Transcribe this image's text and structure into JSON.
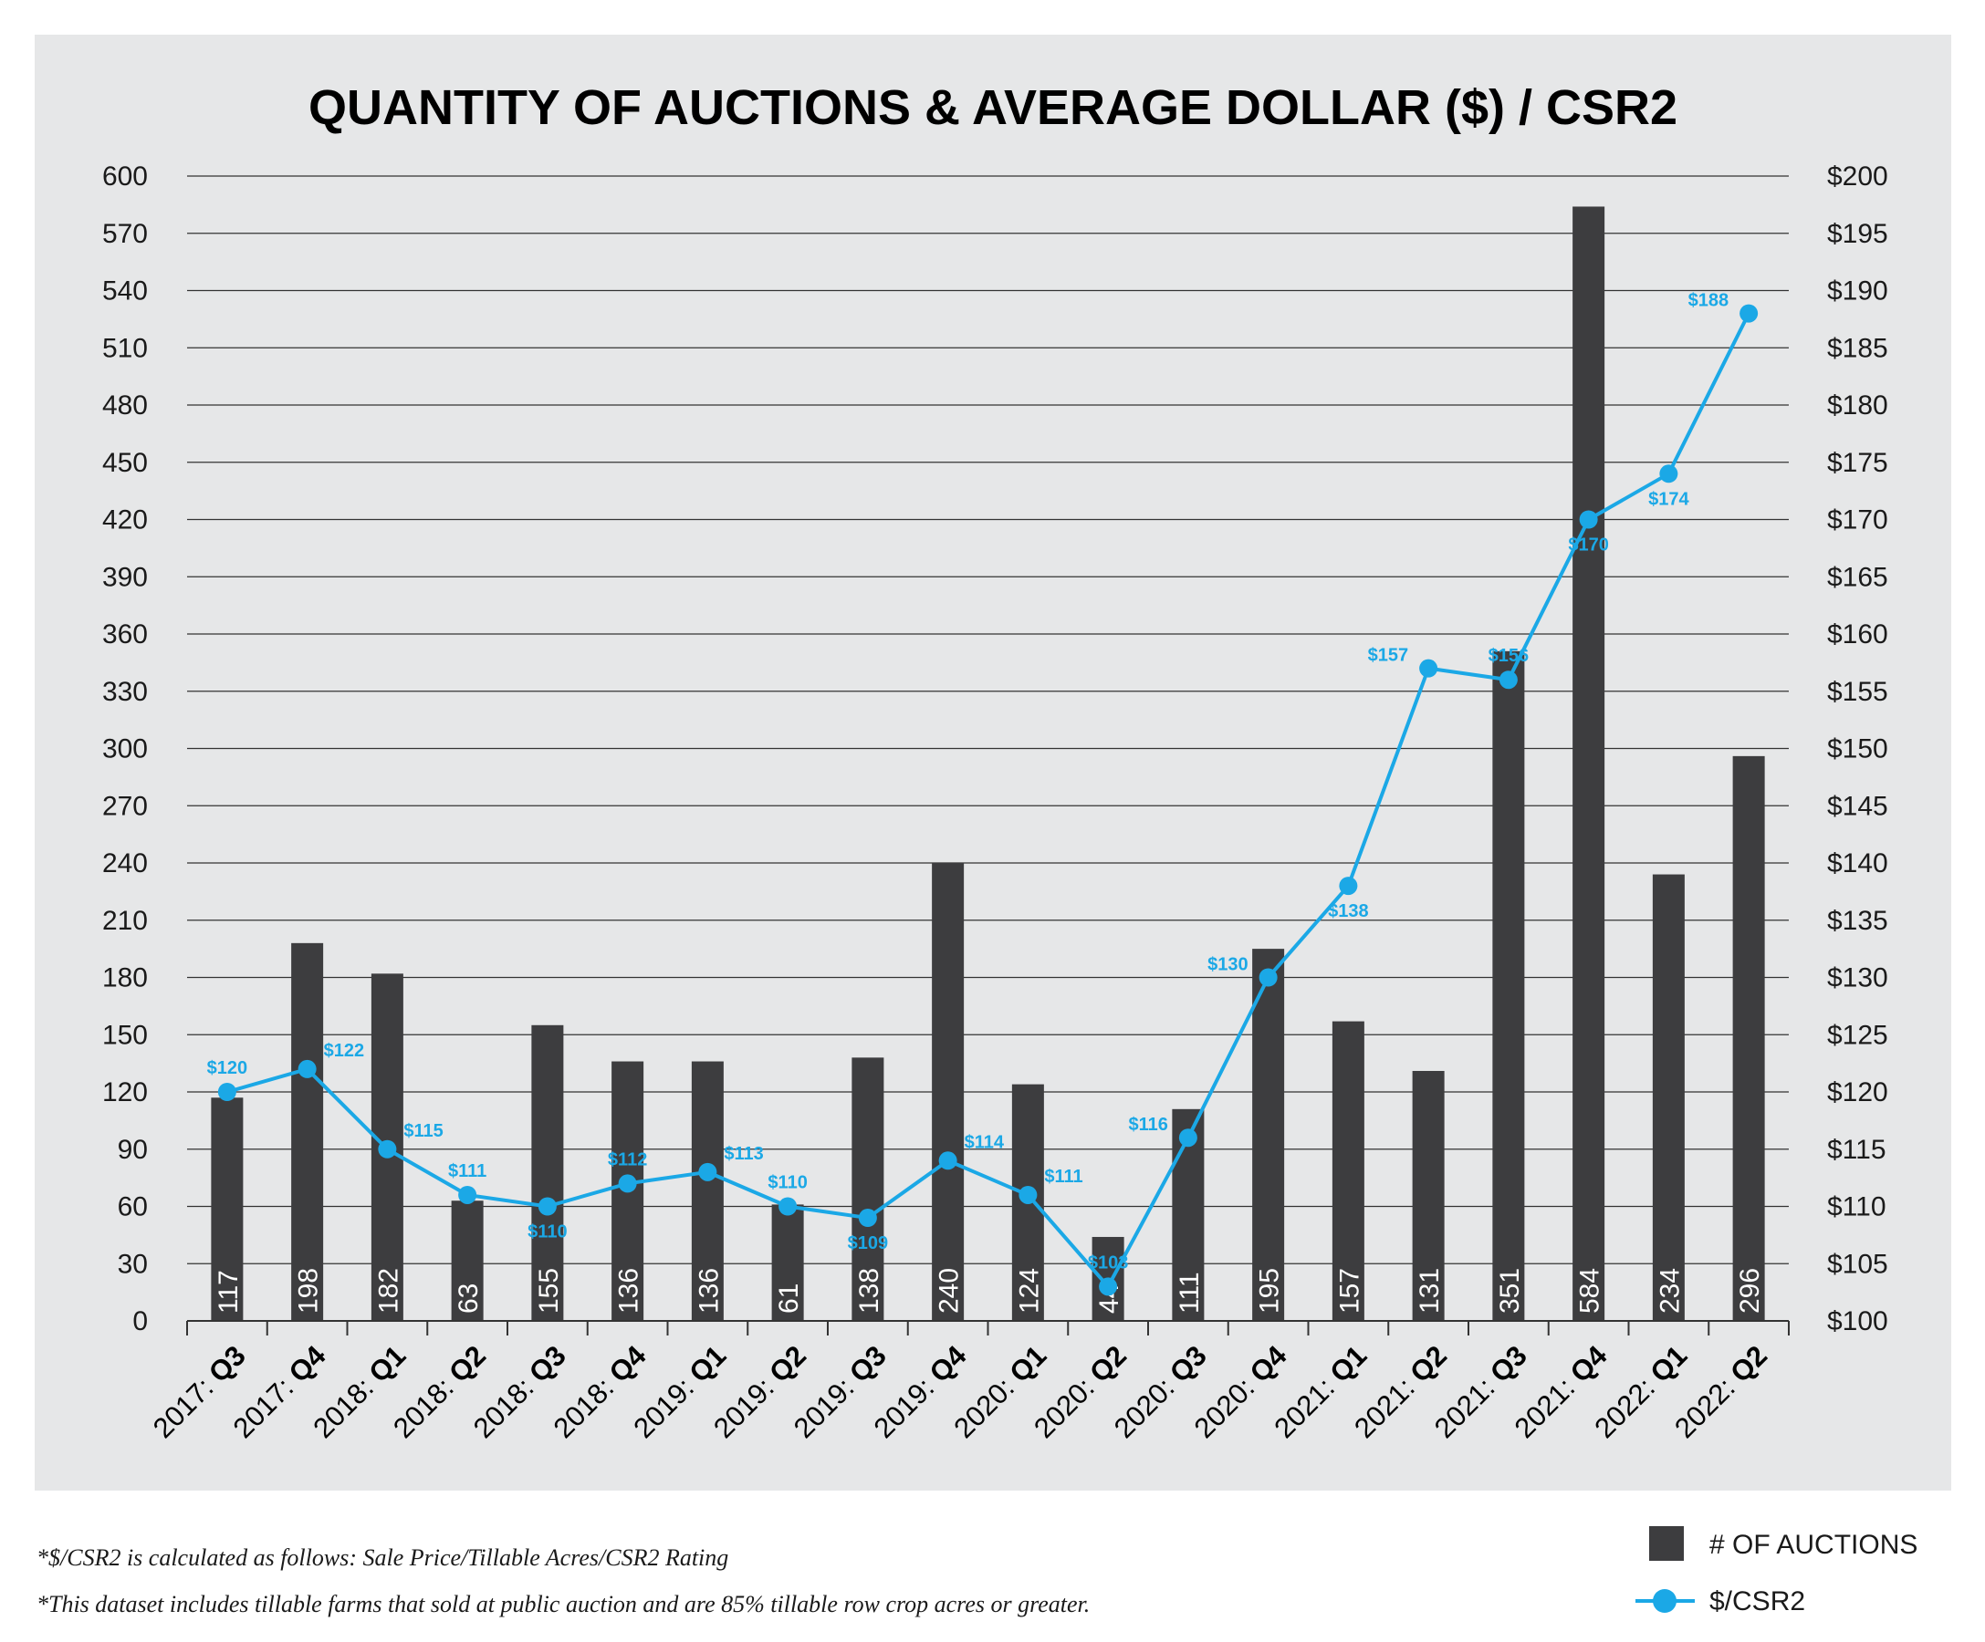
{
  "colors": {
    "bar": "#3d3d3f",
    "line": "#1ba8e6",
    "panel": "#e6e7e8",
    "grid": "#333333"
  },
  "chart_data": {
    "type": "bar+line",
    "title": "QUANTITY OF AUCTIONS & AVERAGE DOLLAR ($) / CSR2",
    "grid": true,
    "legend_position": "bottom-right",
    "categories": [
      {
        "year": "2017: ",
        "q": "Q3"
      },
      {
        "year": "2017: ",
        "q": "Q4"
      },
      {
        "year": "2018: ",
        "q": "Q1"
      },
      {
        "year": "2018: ",
        "q": "Q2"
      },
      {
        "year": "2018: ",
        "q": "Q3"
      },
      {
        "year": "2018: ",
        "q": "Q4"
      },
      {
        "year": "2019: ",
        "q": "Q1"
      },
      {
        "year": "2019: ",
        "q": "Q2"
      },
      {
        "year": "2019: ",
        "q": "Q3"
      },
      {
        "year": "2019: ",
        "q": "Q4"
      },
      {
        "year": "2020: ",
        "q": "Q1"
      },
      {
        "year": "2020: ",
        "q": "Q2"
      },
      {
        "year": "2020: ",
        "q": "Q3"
      },
      {
        "year": "2020: ",
        "q": "Q4"
      },
      {
        "year": "2021: ",
        "q": "Q1"
      },
      {
        "year": "2021: ",
        "q": "Q2"
      },
      {
        "year": "2021: ",
        "q": "Q3"
      },
      {
        "year": "2021: ",
        "q": "Q4"
      },
      {
        "year": "2022: ",
        "q": "Q1"
      },
      {
        "year": "2022: ",
        "q": "Q2"
      }
    ],
    "y_left": {
      "ylim": [
        0,
        600
      ],
      "ticks": [
        "0",
        "30",
        "60",
        "90",
        "120",
        "150",
        "180",
        "210",
        "240",
        "270",
        "300",
        "330",
        "360",
        "390",
        "420",
        "450",
        "480",
        "510",
        "540",
        "570",
        "600"
      ]
    },
    "y_right": {
      "ylim": [
        100,
        200
      ],
      "ticks": [
        "$100",
        "$105",
        "$110",
        "$115",
        "$120",
        "$125",
        "$130",
        "$135",
        "$140",
        "$145",
        "$150",
        "$155",
        "$160",
        "$165",
        "$170",
        "$175",
        "$180",
        "$185",
        "$190",
        "$195",
        "$200"
      ]
    },
    "series": [
      {
        "name": "# OF AUCTIONS",
        "type": "bar",
        "axis": "left",
        "values": [
          117,
          198,
          182,
          63,
          155,
          136,
          136,
          61,
          138,
          240,
          124,
          44,
          111,
          195,
          157,
          131,
          351,
          584,
          234,
          296
        ],
        "labels": [
          "117",
          "198",
          "182",
          "63",
          "155",
          "136",
          "136",
          "61",
          "138",
          "240",
          "124",
          "44",
          "111",
          "195",
          "157",
          "131",
          "351",
          "584",
          "234",
          "296"
        ]
      },
      {
        "name": "$/CSR2",
        "type": "line",
        "axis": "right",
        "values": [
          120,
          122,
          115,
          111,
          110,
          112,
          113,
          110,
          109,
          114,
          111,
          103,
          116,
          130,
          138,
          157,
          156,
          170,
          174,
          188
        ],
        "labels": [
          "$120",
          "$122",
          "$115",
          "$111",
          "$110",
          "$112",
          "$113",
          "$110",
          "$109",
          "$114",
          "$111",
          "$103",
          "$116",
          "$130",
          "$138",
          "$157",
          "$156",
          "$170",
          "$174",
          "$188"
        ],
        "label_side": [
          "above",
          "right",
          "right",
          "above",
          "below",
          "above",
          "right",
          "above",
          "below",
          "right",
          "right",
          "above",
          "left",
          "left",
          "below",
          "left",
          "above",
          "below",
          "below",
          "left"
        ]
      }
    ],
    "footnotes": [
      "*$/CSR2 is calculated as follows: Sale Price/Tillable Acres/CSR2 Rating",
      "*This dataset includes tillable farms that sold at public auction and are 85% tillable row crop acres or greater."
    ]
  }
}
